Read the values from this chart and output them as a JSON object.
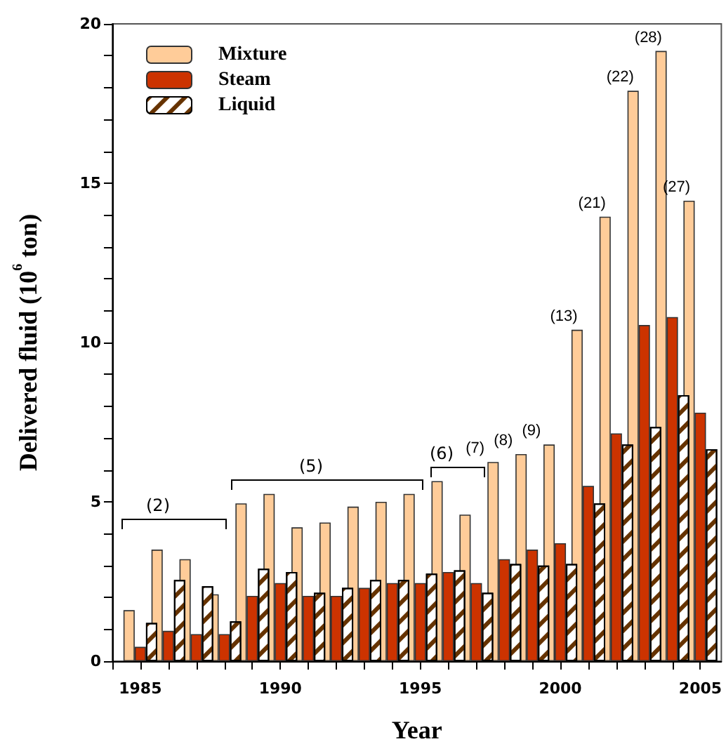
{
  "chart_data": {
    "type": "bar",
    "xlabel": "Year",
    "ylabel": "Delivered fluid (10$^{6}$ ton)",
    "x": [
      1985,
      1986,
      1987,
      1988,
      1989,
      1990,
      1991,
      1992,
      1993,
      1994,
      1995,
      1996,
      1997,
      1998,
      1999,
      2000,
      2001,
      2002,
      2003,
      2004,
      2005
    ],
    "series": [
      {
        "name": "Mixture",
        "color": "#ffcc99",
        "values": [
          1.6,
          3.5,
          3.2,
          2.1,
          4.95,
          5.25,
          4.2,
          4.35,
          4.85,
          5.0,
          5.25,
          5.65,
          4.6,
          6.25,
          6.5,
          6.8,
          10.4,
          13.95,
          17.9,
          19.15,
          14.45
        ]
      },
      {
        "name": "Steam",
        "color": "#cc3300",
        "values": [
          0.45,
          0.95,
          0.85,
          0.85,
          2.05,
          2.45,
          2.05,
          2.05,
          2.3,
          2.45,
          2.45,
          2.8,
          2.45,
          3.2,
          3.5,
          3.7,
          5.5,
          7.15,
          10.55,
          10.8,
          7.8
        ]
      },
      {
        "name": "Liquid",
        "color": "#ffffff",
        "values": [
          1.2,
          2.55,
          2.35,
          1.25,
          2.9,
          2.8,
          2.15,
          2.3,
          2.55,
          2.55,
          2.75,
          2.85,
          2.15,
          3.05,
          3.0,
          3.05,
          4.95,
          6.8,
          7.35,
          8.35,
          6.65
        ]
      }
    ],
    "xlim": [
      1984,
      2005.75
    ],
    "xticks": [
      {
        "value": 1984,
        "label": null
      },
      1985,
      {
        "value": 1986,
        "label": null
      },
      {
        "value": 1987,
        "label": null
      },
      {
        "value": 1988,
        "label": null
      },
      {
        "value": 1989,
        "label": null
      },
      1990,
      {
        "value": 1991,
        "label": null
      },
      {
        "value": 1992,
        "label": null
      },
      {
        "value": 1993,
        "label": null
      },
      {
        "value": 1994,
        "label": null
      },
      1995,
      {
        "value": 1996,
        "label": null
      },
      {
        "value": 1997,
        "label": null
      },
      {
        "value": 1998,
        "label": null
      },
      {
        "value": 1999,
        "label": null
      },
      2000,
      {
        "value": 2001,
        "label": null
      },
      {
        "value": 2002,
        "label": null
      },
      {
        "value": 2003,
        "label": null
      },
      {
        "value": 2004,
        "label": null
      },
      2005
    ],
    "ylim": [
      0,
      20
    ],
    "yticks": [
      0,
      {
        "value": 1,
        "label": null
      },
      {
        "value": 2,
        "label": null
      },
      {
        "value": 3,
        "label": null
      },
      {
        "value": 4,
        "label": null
      },
      5,
      {
        "value": 6,
        "label": null
      },
      {
        "value": 7,
        "label": null
      },
      {
        "value": 8,
        "label": null
      },
      {
        "value": 9,
        "label": null
      },
      10,
      {
        "value": 11,
        "label": null
      },
      {
        "value": 12,
        "label": null
      },
      {
        "value": 13,
        "label": null
      },
      {
        "value": 14,
        "label": null
      },
      15,
      {
        "value": 16,
        "label": null
      },
      {
        "value": 17,
        "label": null
      },
      {
        "value": 18,
        "label": null
      },
      {
        "value": 19,
        "label": null
      },
      20
    ],
    "annotations": [
      "(2)",
      "(5)",
      "(6)",
      {
        "text": "(7)",
        "x": 1998,
        "y": 6.25
      },
      {
        "text": "(8)",
        "x": 1999,
        "y": 6.5
      },
      {
        "text": "(9)",
        "x": 2000,
        "y": 6.8
      },
      {
        "text": "(13)",
        "x": 2001,
        "y": 10.4
      },
      {
        "text": "(21)",
        "x": 2002,
        "y": 13.95
      },
      {
        "text": "(22)",
        "x": 2003,
        "y": 17.9
      },
      {
        "text": "(28)",
        "x": 2004,
        "y": 19.15
      },
      {
        "text": "(27)",
        "x": 2005,
        "y": 14.45
      }
    ],
    "legend": "top left",
    "grid": false
  }
}
